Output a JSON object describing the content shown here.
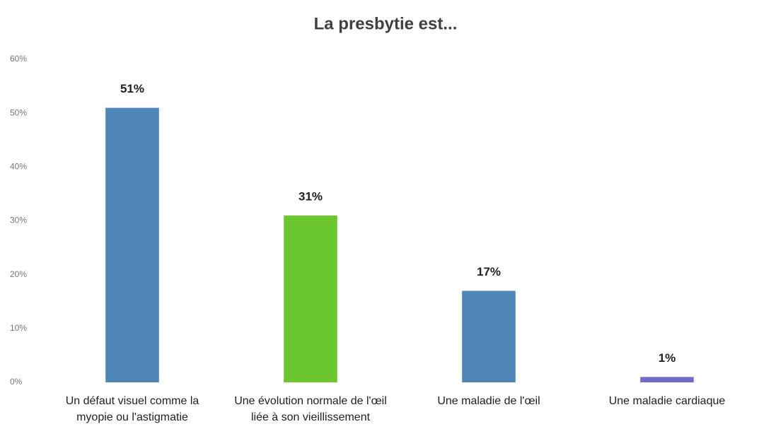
{
  "chart_data": {
    "type": "bar",
    "title": "La presbytie est...",
    "categories": [
      "Un défaut visuel comme la myopie ou l'astigmatie",
      "Une évolution normale de l'œil liée à son vieillissement",
      "Une maladie de l'œil",
      "Une maladie cardiaque"
    ],
    "values": [
      51,
      31,
      17,
      1
    ],
    "value_labels": [
      "51%",
      "31%",
      "17%",
      "1%"
    ],
    "colors": [
      "#4f86b8",
      "#6cc72f",
      "#4f86b8",
      "#6f6cc8"
    ],
    "ylim": [
      0,
      60
    ],
    "yticks": [
      {
        "value": 0,
        "label": "0%"
      },
      {
        "value": 10,
        "label": "10%"
      },
      {
        "value": 20,
        "label": "20%"
      },
      {
        "value": 30,
        "label": "30%"
      },
      {
        "value": 40,
        "label": "40%"
      },
      {
        "value": 50,
        "label": "50%"
      },
      {
        "value": 60,
        "label": "60%"
      }
    ],
    "grid": false
  }
}
